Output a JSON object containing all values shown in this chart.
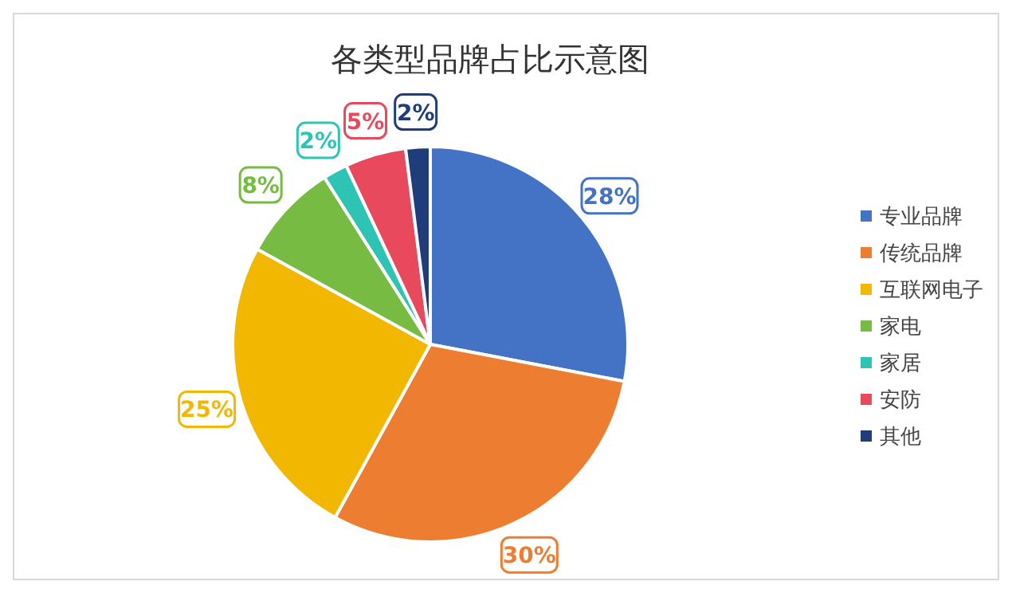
{
  "chart_data": {
    "type": "pie",
    "title": "各类型品牌占比示意图",
    "categories": [
      "专业品牌",
      "传统品牌",
      "互联网电子",
      "家电",
      "家居",
      "安防",
      "其他"
    ],
    "values": [
      28,
      30,
      25,
      8,
      2,
      5,
      2
    ],
    "colors": [
      "#4472c4",
      "#ed7d31",
      "#f2b700",
      "#78bb43",
      "#2ec4b4",
      "#e8495d",
      "#1f3d7a"
    ],
    "value_labels": [
      "28%",
      "30%",
      "25%",
      "8%",
      "2%",
      "5%",
      "2%"
    ],
    "legend": "right"
  }
}
